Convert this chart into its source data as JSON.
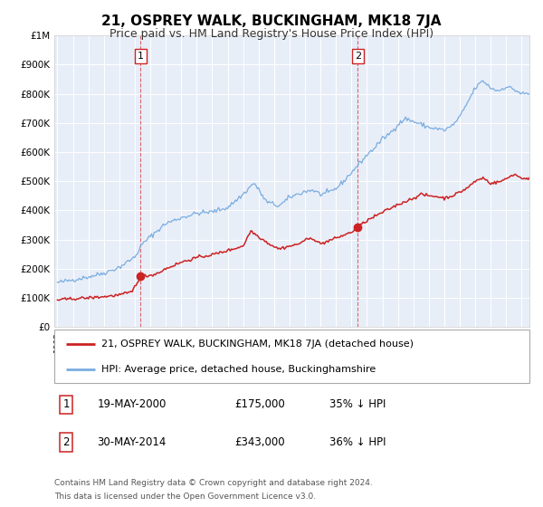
{
  "title": "21, OSPREY WALK, BUCKINGHAM, MK18 7JA",
  "subtitle": "Price paid vs. HM Land Registry's House Price Index (HPI)",
  "bg_color": "#ffffff",
  "plot_bg_color": "#e8eef8",
  "grid_color": "#ffffff",
  "hpi_color": "#7aade0",
  "price_color": "#cc2222",
  "sale1_x": 2000.38,
  "sale1_y": 175000,
  "sale2_x": 2014.41,
  "sale2_y": 343000,
  "ylim": [
    0,
    1000000
  ],
  "xlim_start": 1994.8,
  "xlim_end": 2025.5,
  "ytick_labels": [
    "£0",
    "£100K",
    "£200K",
    "£300K",
    "£400K",
    "£500K",
    "£600K",
    "£700K",
    "£800K",
    "£900K",
    "£1M"
  ],
  "ytick_values": [
    0,
    100000,
    200000,
    300000,
    400000,
    500000,
    600000,
    700000,
    800000,
    900000,
    1000000
  ],
  "legend_line1": "21, OSPREY WALK, BUCKINGHAM, MK18 7JA (detached house)",
  "legend_line2": "HPI: Average price, detached house, Buckinghamshire",
  "annotation1_label": "1",
  "annotation1_date": "19-MAY-2000",
  "annotation1_price": "£175,000",
  "annotation1_hpi": "35% ↓ HPI",
  "annotation2_label": "2",
  "annotation2_date": "30-MAY-2014",
  "annotation2_price": "£343,000",
  "annotation2_hpi": "36% ↓ HPI",
  "footer_line1": "Contains HM Land Registry data © Crown copyright and database right 2024.",
  "footer_line2": "This data is licensed under the Open Government Licence v3.0."
}
